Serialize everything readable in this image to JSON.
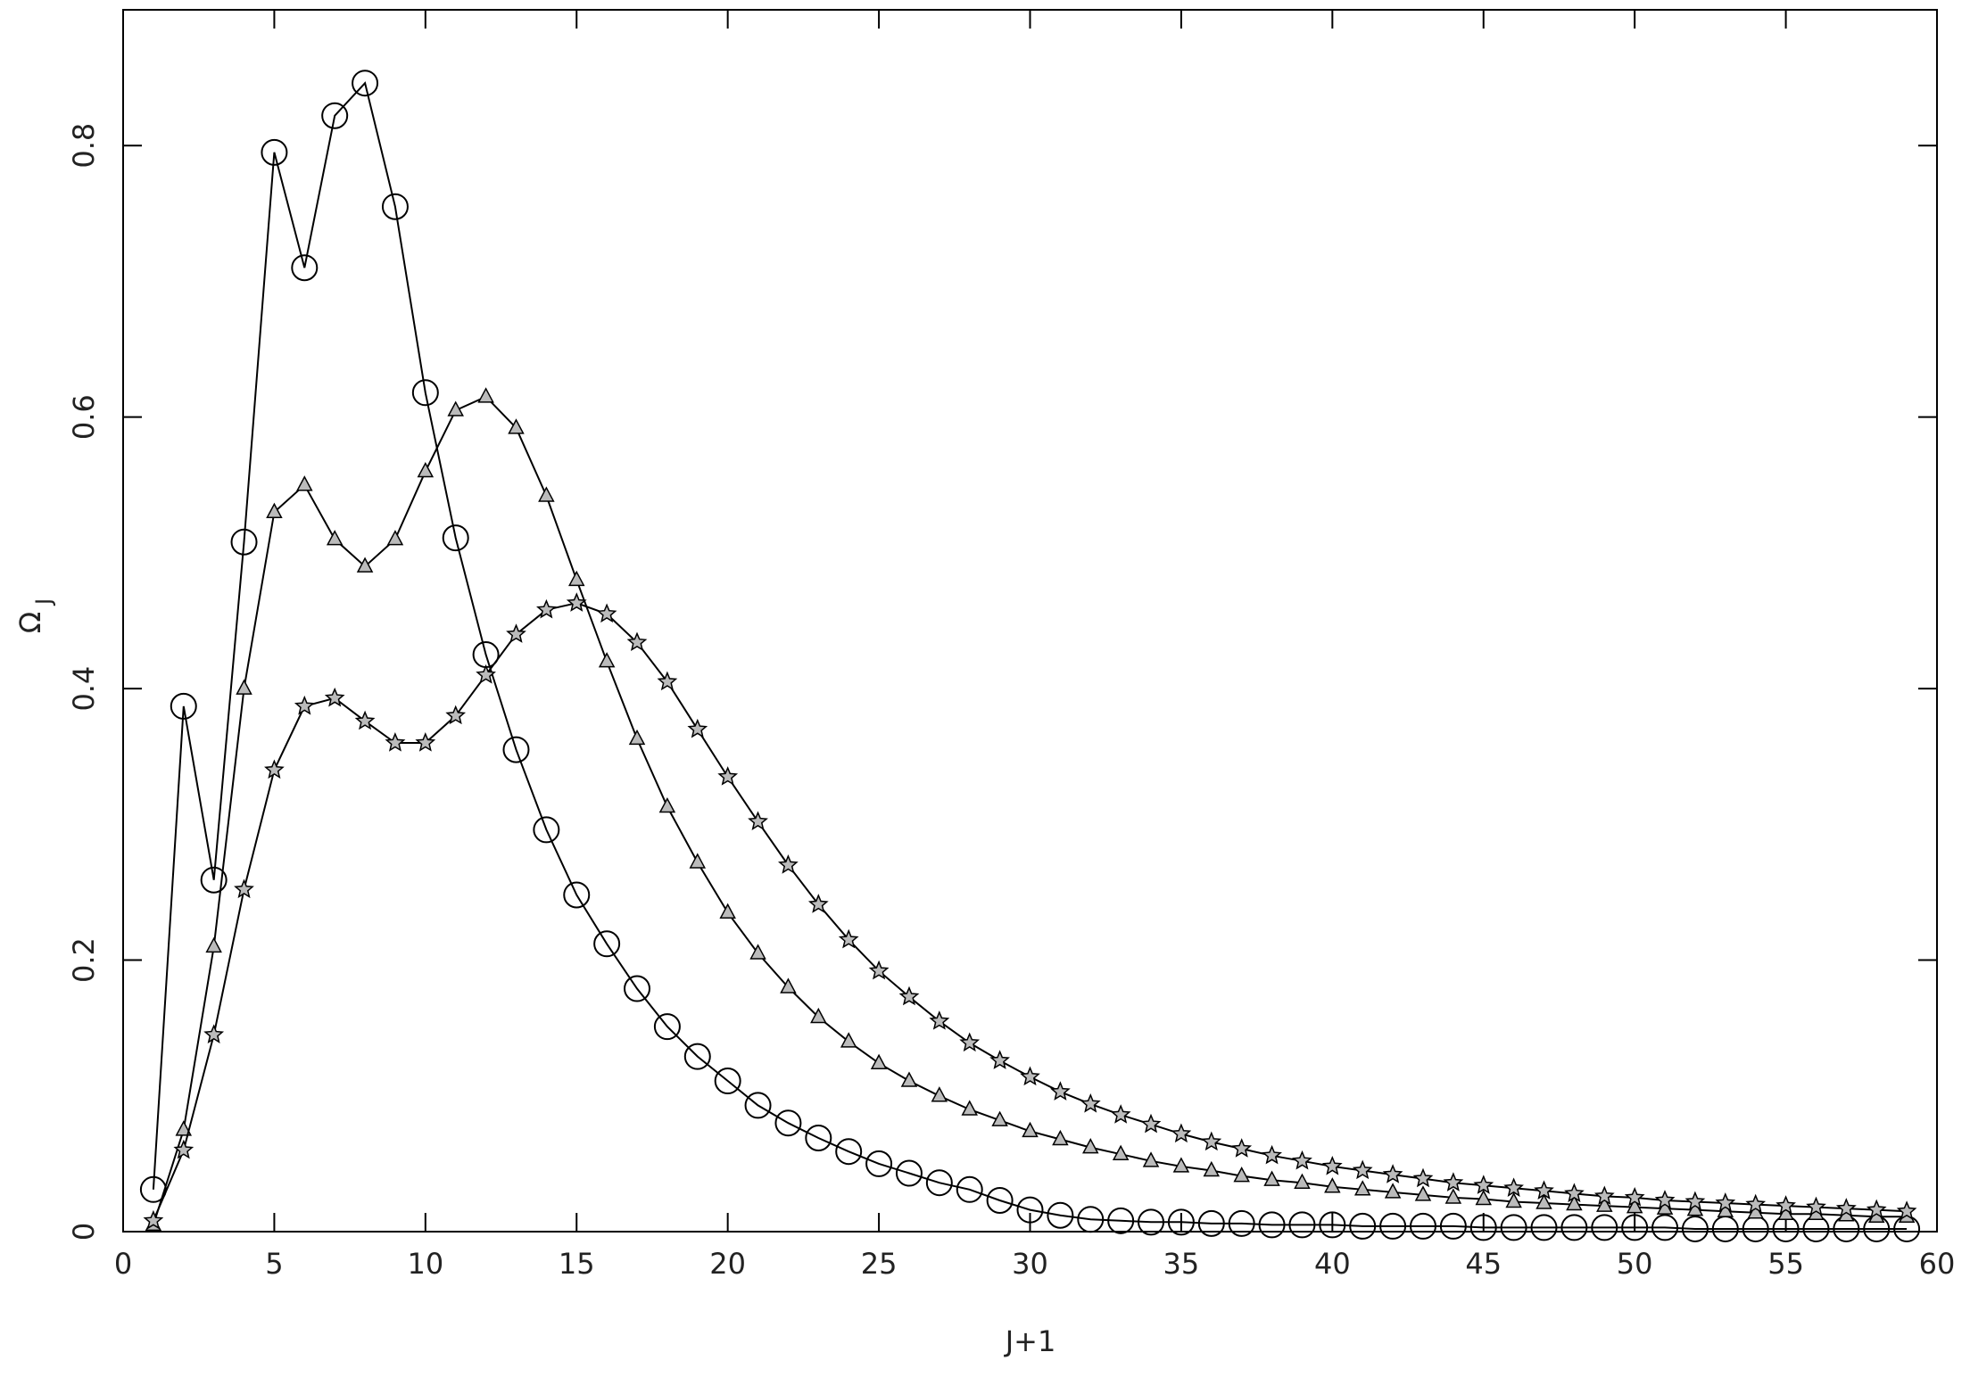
{
  "chart_data": {
    "type": "line",
    "xlabel": "J+1",
    "ylabel": "Ω",
    "ylabel_subscript": "J",
    "x": [
      1,
      2,
      3,
      4,
      5,
      6,
      7,
      8,
      9,
      10,
      11,
      12,
      13,
      14,
      15,
      16,
      17,
      18,
      19,
      20,
      21,
      22,
      23,
      24,
      25,
      26,
      27,
      28,
      29,
      30,
      31,
      32,
      33,
      34,
      35,
      36,
      37,
      38,
      39,
      40,
      41,
      42,
      43,
      44,
      45,
      46,
      47,
      48,
      49,
      50,
      51,
      52,
      53,
      54,
      55,
      56,
      57,
      58,
      59
    ],
    "series": [
      {
        "color": "#000000",
        "marker": "circle",
        "values": [
          0.031,
          0.387,
          0.259,
          0.508,
          0.795,
          0.71,
          0.822,
          0.846,
          0.755,
          0.618,
          0.511,
          0.425,
          0.355,
          0.296,
          0.248,
          0.212,
          0.179,
          0.151,
          0.129,
          0.111,
          0.093,
          0.08,
          0.069,
          0.059,
          0.05,
          0.043,
          0.036,
          0.031,
          0.023,
          0.016,
          0.012,
          0.009,
          0.008,
          0.007,
          0.007,
          0.006,
          0.006,
          0.005,
          0.005,
          0.005,
          0.004,
          0.004,
          0.004,
          0.004,
          0.003,
          0.003,
          0.003,
          0.003,
          0.003,
          0.003,
          0.003,
          0.002,
          0.002,
          0.002,
          0.002,
          0.002,
          0.002,
          0.002,
          0.002
        ]
      },
      {
        "color": "#000000",
        "marker": "triangle",
        "values": [
          0.005,
          0.075,
          0.21,
          0.4,
          0.53,
          0.55,
          0.51,
          0.49,
          0.51,
          0.56,
          0.605,
          0.615,
          0.592,
          0.542,
          0.48,
          0.42,
          0.363,
          0.313,
          0.272,
          0.235,
          0.205,
          0.18,
          0.158,
          0.14,
          0.124,
          0.111,
          0.1,
          0.09,
          0.082,
          0.074,
          0.068,
          0.062,
          0.057,
          0.052,
          0.048,
          0.045,
          0.041,
          0.038,
          0.036,
          0.033,
          0.031,
          0.029,
          0.027,
          0.025,
          0.024,
          0.022,
          0.021,
          0.02,
          0.019,
          0.018,
          0.017,
          0.016,
          0.015,
          0.014,
          0.013,
          0.013,
          0.012,
          0.011,
          0.011
        ]
      },
      {
        "color": "#000000",
        "marker": "star",
        "values": [
          0.008,
          0.06,
          0.145,
          0.252,
          0.34,
          0.387,
          0.393,
          0.376,
          0.36,
          0.36,
          0.38,
          0.41,
          0.44,
          0.458,
          0.463,
          0.455,
          0.434,
          0.405,
          0.37,
          0.335,
          0.302,
          0.27,
          0.241,
          0.215,
          0.192,
          0.173,
          0.155,
          0.139,
          0.126,
          0.114,
          0.103,
          0.094,
          0.086,
          0.079,
          0.072,
          0.066,
          0.061,
          0.056,
          0.052,
          0.048,
          0.045,
          0.042,
          0.039,
          0.036,
          0.034,
          0.032,
          0.03,
          0.028,
          0.026,
          0.025,
          0.023,
          0.022,
          0.021,
          0.02,
          0.019,
          0.018,
          0.017,
          0.016,
          0.015
        ]
      }
    ],
    "xlim": [
      0,
      60
    ],
    "xticks": [
      0,
      5,
      10,
      15,
      20,
      25,
      30,
      35,
      40,
      45,
      50,
      55,
      60
    ],
    "ylim": [
      0,
      0.9
    ],
    "yticks": [
      0,
      0.2,
      0.4,
      0.6,
      0.8
    ],
    "grid": false
  }
}
